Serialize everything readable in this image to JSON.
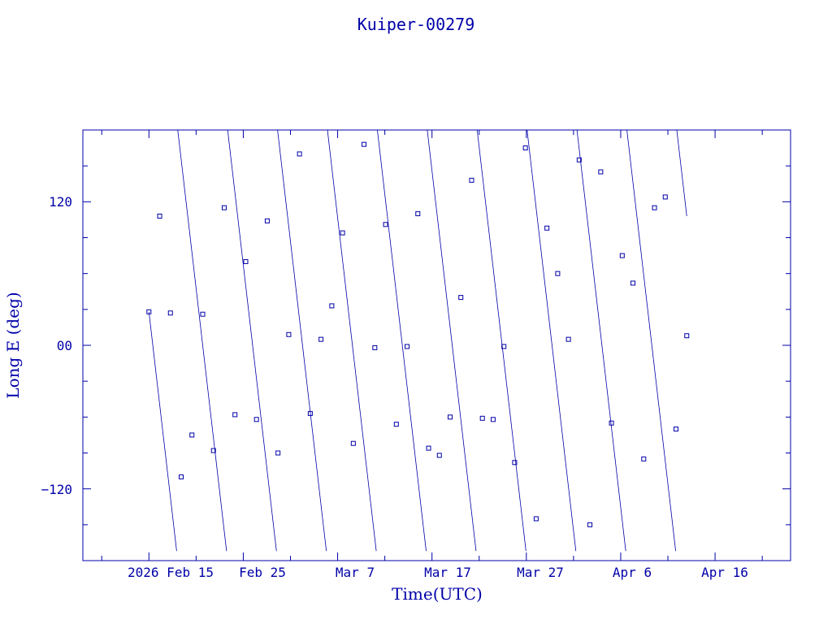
{
  "chart_data": {
    "type": "scatter",
    "title": "Kuiper-00279",
    "xlabel": "Time(UTC)",
    "ylabel": "Long E (deg)",
    "x_ticks": [
      "2026 Feb 15",
      "Feb 25",
      "Mar  7",
      "Mar 17",
      "Mar 27",
      "Apr  6",
      "Apr 16"
    ],
    "y_ticks": [
      "120",
      "00",
      "−120"
    ],
    "xlim": [
      "2026-02-08",
      "2026-04-24"
    ],
    "ylim": [
      -180,
      180
    ],
    "grid": false,
    "line_color": "#0000a8",
    "samples_per_day": 3.4,
    "drift_deg_per_sample": 20,
    "x_start": "2026-02-15",
    "x_end": "2026-04-13",
    "series": [
      {
        "sample_longitudes_deg": [
          28,
          108,
          27,
          -110,
          -75,
          26,
          -88,
          115,
          -58,
          70,
          -62,
          104,
          -90,
          9,
          160,
          -57,
          5,
          33,
          94,
          -82,
          168,
          -2,
          101,
          -66,
          -1,
          110,
          -86,
          -92,
          -60,
          40,
          138,
          -61,
          -62,
          -1,
          -98,
          165,
          -145,
          98,
          60,
          5,
          155,
          -150,
          145,
          -65,
          75,
          52,
          -95,
          115,
          124,
          -70,
          8
        ]
      }
    ]
  }
}
